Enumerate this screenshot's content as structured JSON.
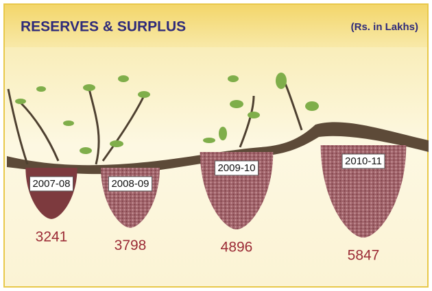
{
  "chart_data": {
    "type": "bar",
    "title": "RESERVES & SURPLUS",
    "subtitle": "(Rs. in Lakhs)",
    "categories": [
      "2007-08",
      "2008-09",
      "2009-10",
      "2010-11"
    ],
    "values": [
      3241,
      3798,
      4896,
      5847
    ]
  }
}
